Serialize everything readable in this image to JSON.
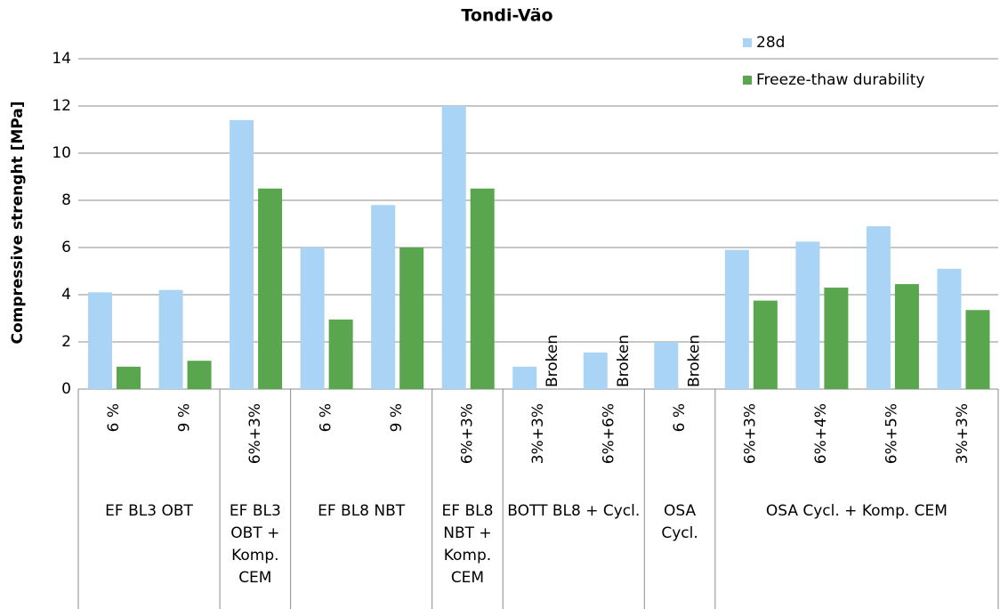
{
  "chart_data": {
    "type": "bar",
    "title": "Tondi-Väo",
    "y_label": "Compressive strenght [MPa]",
    "categories": [
      "6 %",
      "9 %",
      "6%+3%",
      "6 %",
      "9 %",
      "6%+3%",
      "3%+3%",
      "6%+6%",
      "6 %",
      "6%+3%",
      "6%+4%",
      "6%+5%",
      "3%+3%"
    ],
    "groups": [
      {
        "label": "EF BL3 OBT",
        "size": 2
      },
      {
        "label": "EF BL3 OBT + Komp. CEM",
        "size": 1
      },
      {
        "label": "EF BL8 NBT",
        "size": 2
      },
      {
        "label": "EF BL8 NBT + Komp. CEM",
        "size": 1
      },
      {
        "label": "BOTT BL8 + Cycl.",
        "size": 2
      },
      {
        "label": "OSA Cycl.",
        "size": 1
      },
      {
        "label": "OSA Cycl. + Komp. CEM",
        "size": 4
      }
    ],
    "series": [
      {
        "name": "28d",
        "color": "#a9d4f5",
        "values": [
          4.1,
          4.2,
          11.4,
          6.0,
          7.8,
          12.0,
          0.95,
          1.55,
          2.0,
          5.9,
          6.25,
          6.9,
          5.1
        ]
      },
      {
        "name": "Freeze-thaw durability",
        "color": "#5aa64f",
        "values": [
          0.95,
          1.2,
          8.5,
          2.95,
          6.0,
          8.5,
          null,
          null,
          null,
          3.75,
          4.3,
          4.45,
          3.35
        ],
        "value_labels": [
          null,
          null,
          null,
          null,
          null,
          null,
          "Broken",
          "Broken",
          "Broken",
          null,
          null,
          null,
          null
        ]
      }
    ],
    "ylim": [
      0,
      14
    ],
    "yticks": [
      0,
      2,
      4,
      6,
      8,
      10,
      12,
      14
    ],
    "grid": true,
    "legend": "top-right"
  }
}
